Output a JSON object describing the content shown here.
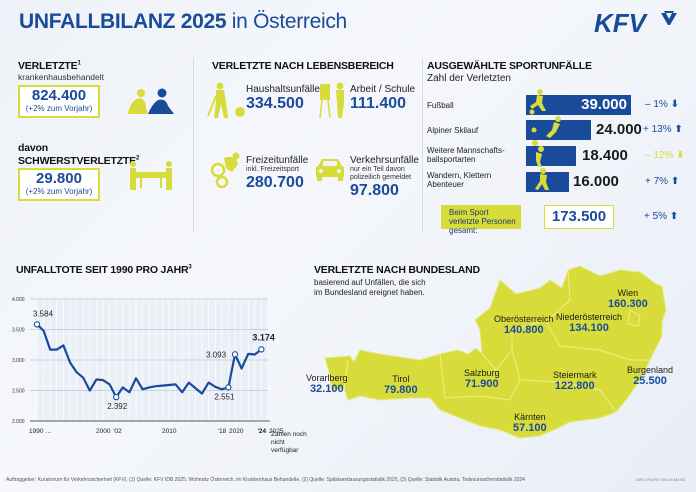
{
  "header": {
    "title_bold": "UNFALLBILANZ 2025",
    "title_rest": " in Österreich",
    "logo_text": "KFV"
  },
  "verletzte": {
    "heading": "VERLETZTE",
    "sup": "1",
    "sub": "krankenhausbehandelt",
    "value": "824.400",
    "change": "(+2% zum Vorjahr)",
    "icon": "injured-people-icon"
  },
  "schwerst": {
    "heading_1": "davon",
    "heading_2": "SCHWERSTVERLETZTE",
    "sup": "2",
    "value": "29.800",
    "change": "(+2% zum Vorjahr)",
    "icon": "stretcher-icon"
  },
  "lebensbereich": {
    "heading": "VERLETZTE NACH LEBENSBEREICH",
    "items": [
      {
        "label": "Haushaltsunfälle",
        "sub": "",
        "value": "334.500",
        "icon": "household-icon"
      },
      {
        "label": "Arbeit / Schule",
        "sub": "",
        "value": "111.400",
        "icon": "work-school-icon"
      },
      {
        "label": "Freizeitunfälle",
        "sub": "inkl. Freizeitsport",
        "value": "280.700",
        "icon": "bmx-icon"
      },
      {
        "label": "Verkehrsunfälle",
        "sub": "nur ein Teil davon polizeilich gemeldet",
        "value": "97.800",
        "icon": "car-icon"
      }
    ]
  },
  "sport": {
    "heading": "AUSGEWÄHLTE SPORTUNFÄLLE",
    "subheading": "Zahl der Verletzten",
    "items": [
      {
        "label": "Fußball",
        "value": "39.000",
        "change": "– 1%",
        "direction": "down",
        "color": "#1a4b9b",
        "icon": "football-icon"
      },
      {
        "label": "Alpiner Skilauf",
        "value": "24.000",
        "change": "+ 13%",
        "direction": "up",
        "color": "#1a4b9b",
        "icon": "skiing-icon"
      },
      {
        "label": "Weitere Mannschafts-ballsportarten",
        "value": "18.400",
        "change": "– 12%",
        "direction": "down",
        "color": "#d7dc3b",
        "icon": "ballsport-icon"
      },
      {
        "label": "Wandern, Klettern Abenteuer",
        "value": "16.000",
        "change": "+ 7%",
        "direction": "up",
        "color": "#1a4b9b",
        "icon": "hiking-icon"
      }
    ],
    "total_label": "Beim Sport verletzte Personen gesamt:",
    "total_value": "173.500",
    "total_change": "+ 5%",
    "total_direction": "up"
  },
  "chart_data": {
    "type": "line",
    "title": "UNFALLTOTE SEIT 1990 PRO JAHR",
    "title_sup": "3",
    "xlabel": "",
    "ylabel": "",
    "ylim": [
      2000,
      4000
    ],
    "yticks": [
      "2.000",
      "2.500",
      "3.000",
      "3.500",
      "4.000"
    ],
    "xtick_labels": [
      "1990 …",
      "2000",
      "'02",
      "2010",
      "'18",
      "2020",
      "'24",
      "2025"
    ],
    "x_note": "Zahlen noch nicht verfügbar",
    "grid": true,
    "x": [
      1990,
      1991,
      1992,
      1993,
      1994,
      1995,
      1996,
      1997,
      1998,
      1999,
      2000,
      2001,
      2002,
      2003,
      2004,
      2005,
      2006,
      2007,
      2008,
      2009,
      2010,
      2011,
      2012,
      2013,
      2014,
      2015,
      2016,
      2017,
      2018,
      2019,
      2020,
      2021,
      2022,
      2023,
      2024
    ],
    "series": [
      {
        "name": "Unfalltote",
        "values": [
          3584,
          3480,
          3170,
          3170,
          3240,
          2960,
          2800,
          2710,
          2500,
          2680,
          2670,
          2600,
          2392,
          2550,
          2470,
          2700,
          2520,
          2550,
          2570,
          2580,
          2590,
          2600,
          2470,
          2630,
          2540,
          2450,
          2630,
          2560,
          2520,
          2551,
          3093,
          2860,
          3100,
          3090,
          3174
        ]
      }
    ],
    "annotations": [
      {
        "x": 1990,
        "label": "3.584"
      },
      {
        "x": 2002,
        "label": "2.392"
      },
      {
        "x": 2019,
        "label": "2.551"
      },
      {
        "x": 2020,
        "label": "3.093"
      },
      {
        "x": 2024,
        "label": "3.174"
      }
    ]
  },
  "bundesland": {
    "heading": "VERLETZTE NACH BUNDESLAND",
    "subheading_1": "basierend auf Unfällen, die sich",
    "subheading_2": "im Bundesland ereignet haben.",
    "map_color": "#d7dc3b",
    "states": [
      {
        "name": "Wien",
        "value": "160.300"
      },
      {
        "name": "Niederösterreich",
        "value": "134.100"
      },
      {
        "name": "Oberösterreich",
        "value": "140.800"
      },
      {
        "name": "Burgenland",
        "value": "25.500"
      },
      {
        "name": "Steiermark",
        "value": "122.800"
      },
      {
        "name": "Salzburg",
        "value": "71.900"
      },
      {
        "name": "Kärnten",
        "value": "57.100"
      },
      {
        "name": "Tirol",
        "value": "79.800"
      },
      {
        "name": "Vorarlberg",
        "value": "32.100"
      }
    ]
  },
  "footer": {
    "sources": "Auftraggeber: Kuratorium für Verkehrssicherheit (KFV). (1) Quelle: KFV IDB 2025, Wohnsitz Österreich, im Krankenhaus Behandelte. (2) Quelle: Spitalsentlassungsstatistik 2025, (3) Quelle: Statistik Austria, Todesursachenstatistik 2024",
    "credit": "APA-GRAFIK ON DEMAND"
  },
  "colors": {
    "brand_blue": "#1a4b9b",
    "accent_yellow": "#d7dc3b"
  }
}
